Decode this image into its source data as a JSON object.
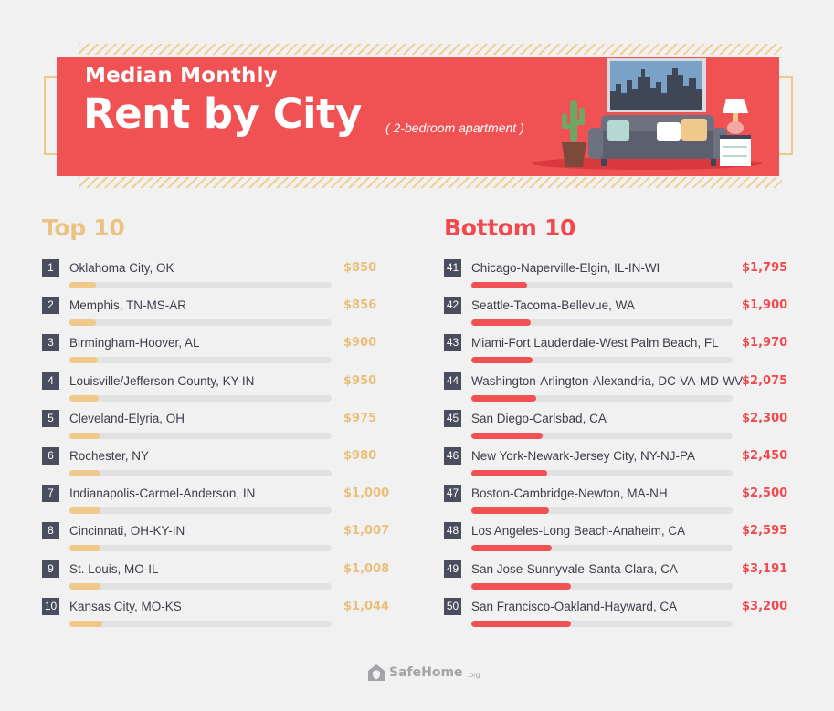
{
  "header": {
    "title_line1": "Median Monthly",
    "title_line2": "Rent by City",
    "subtitle": "( 2-bedroom apartment )"
  },
  "top10": {
    "heading": "Top 10",
    "bar_color": "#efc88a",
    "rows": [
      {
        "rank": "1",
        "city": "Oklahoma City, OK",
        "price": "$850",
        "value": 850
      },
      {
        "rank": "2",
        "city": "Memphis, TN-MS-AR",
        "price": "$856",
        "value": 856
      },
      {
        "rank": "3",
        "city": "Birmingham-Hoover, AL",
        "price": "$900",
        "value": 900
      },
      {
        "rank": "4",
        "city": "Louisville/Jefferson County, KY-IN",
        "price": "$950",
        "value": 950
      },
      {
        "rank": "5",
        "city": "Cleveland-Elyria, OH",
        "price": "$975",
        "value": 975
      },
      {
        "rank": "6",
        "city": "Rochester, NY",
        "price": "$980",
        "value": 980
      },
      {
        "rank": "7",
        "city": "Indianapolis-Carmel-Anderson, IN",
        "price": "$1,000",
        "value": 1000
      },
      {
        "rank": "8",
        "city": "Cincinnati, OH-KY-IN",
        "price": "$1,007",
        "value": 1007
      },
      {
        "rank": "9",
        "city": "St. Louis, MO-IL",
        "price": "$1,008",
        "value": 1008
      },
      {
        "rank": "10",
        "city": "Kansas City, MO-KS",
        "price": "$1,044",
        "value": 1044
      }
    ]
  },
  "bottom10": {
    "heading": "Bottom 10",
    "bar_color": "#f05254",
    "rows": [
      {
        "rank": "41",
        "city": "Chicago-Naperville-Elgin, IL-IN-WI",
        "price": "$1,795",
        "value": 1795
      },
      {
        "rank": "42",
        "city": "Seattle-Tacoma-Bellevue, WA",
        "price": "$1,900",
        "value": 1900
      },
      {
        "rank": "43",
        "city": "Miami-Fort Lauderdale-West Palm Beach, FL",
        "price": "$1,970",
        "value": 1970
      },
      {
        "rank": "44",
        "city": "Washington-Arlington-Alexandria, DC-VA-MD-WV",
        "price": "$2,075",
        "value": 2075
      },
      {
        "rank": "45",
        "city": "San Diego-Carlsbad, CA",
        "price": "$2,300",
        "value": 2300
      },
      {
        "rank": "46",
        "city": "New York-Newark-Jersey City, NY-NJ-PA",
        "price": "$2,450",
        "value": 2450
      },
      {
        "rank": "47",
        "city": "Boston-Cambridge-Newton, MA-NH",
        "price": "$2,500",
        "value": 2500
      },
      {
        "rank": "48",
        "city": "Los Angeles-Long Beach-Anaheim, CA",
        "price": "$2,595",
        "value": 2595
      },
      {
        "rank": "49",
        "city": "San Jose-Sunnyvale-Santa Clara, CA",
        "price": "$3,191",
        "value": 3191
      },
      {
        "rank": "50",
        "city": "San Francisco-Oakland-Hayward, CA",
        "price": "$3,200",
        "value": 3200
      }
    ]
  },
  "bar_scale_max": 8400,
  "footer": {
    "brand": "SafeHome",
    "brand_suffix": ".org",
    "logo_icon": "house-shield-icon"
  },
  "colors": {
    "banner": "#f05254",
    "accent_gold": "#efc88a",
    "rank_badge": "#4a4d5e",
    "background": "#f2f1f1"
  }
}
